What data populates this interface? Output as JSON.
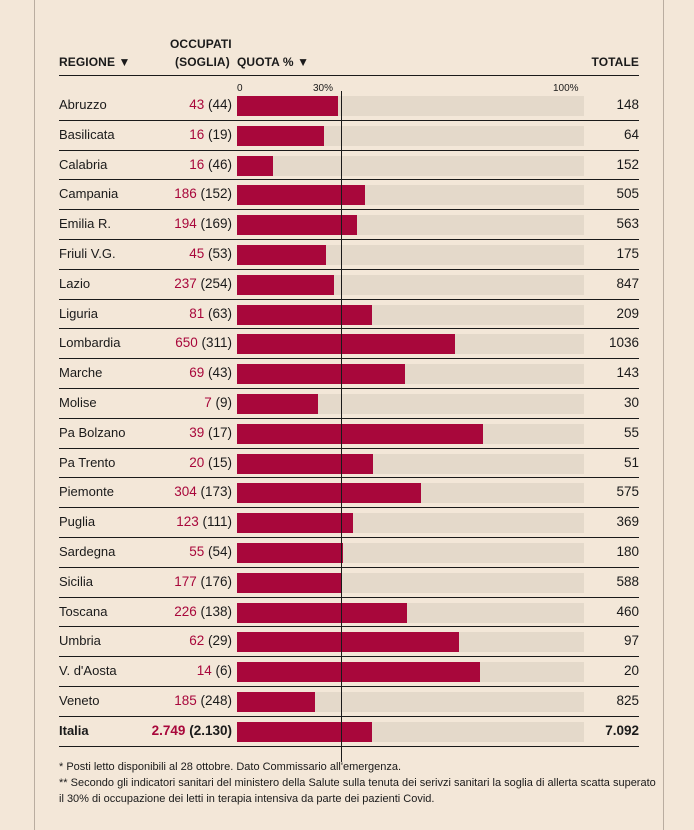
{
  "chart_data": {
    "type": "bar",
    "orientation": "horizontal",
    "title": "",
    "headers": {
      "regione": "REGIONE ▼",
      "occupati_line1": "OCCUPATI",
      "occupati_line2": "(SOGLIA)",
      "quota": "QUOTA % ▼",
      "totale": "TOTALE"
    },
    "xaxis": {
      "ticks": [
        "0",
        "30%",
        "100%"
      ],
      "range": [
        0,
        100
      ],
      "reference_line": 30
    },
    "rows": [
      {
        "regione": "Abruzzo",
        "occupati": "43",
        "soglia": "(44)",
        "totale": "148",
        "quota": 29.1
      },
      {
        "regione": "Basilicata",
        "occupati": "16",
        "soglia": "(19)",
        "totale": "64",
        "quota": 25.0
      },
      {
        "regione": "Calabria",
        "occupati": "16",
        "soglia": "(46)",
        "totale": "152",
        "quota": 10.5
      },
      {
        "regione": "Campania",
        "occupati": "186",
        "soglia": "(152)",
        "totale": "505",
        "quota": 36.8
      },
      {
        "regione": "Emilia R.",
        "occupati": "194",
        "soglia": "(169)",
        "totale": "563",
        "quota": 34.5
      },
      {
        "regione": "Friuli V.G.",
        "occupati": "45",
        "soglia": "(53)",
        "totale": "175",
        "quota": 25.7
      },
      {
        "regione": "Lazio",
        "occupati": "237",
        "soglia": "(254)",
        "totale": "847",
        "quota": 28.0
      },
      {
        "regione": "Liguria",
        "occupati": "81",
        "soglia": "(63)",
        "totale": "209",
        "quota": 38.8
      },
      {
        "regione": "Lombardia",
        "occupati": "650",
        "soglia": "(311)",
        "totale": "1036",
        "quota": 62.7
      },
      {
        "regione": "Marche",
        "occupati": "69",
        "soglia": "(43)",
        "totale": "143",
        "quota": 48.3
      },
      {
        "regione": "Molise",
        "occupati": "7",
        "soglia": "(9)",
        "totale": "30",
        "quota": 23.3
      },
      {
        "regione": "Pa Bolzano",
        "occupati": "39",
        "soglia": "(17)",
        "totale": "55",
        "quota": 70.9
      },
      {
        "regione": "Pa Trento",
        "occupati": "20",
        "soglia": "(15)",
        "totale": "51",
        "quota": 39.2
      },
      {
        "regione": "Piemonte",
        "occupati": "304",
        "soglia": "(173)",
        "totale": "575",
        "quota": 52.9
      },
      {
        "regione": "Puglia",
        "occupati": "123",
        "soglia": "(111)",
        "totale": "369",
        "quota": 33.3
      },
      {
        "regione": "Sardegna",
        "occupati": "55",
        "soglia": "(54)",
        "totale": "180",
        "quota": 30.6
      },
      {
        "regione": "Sicilia",
        "occupati": "177",
        "soglia": "(176)",
        "totale": "588",
        "quota": 30.1
      },
      {
        "regione": "Toscana",
        "occupati": "226",
        "soglia": "(138)",
        "totale": "460",
        "quota": 49.1
      },
      {
        "regione": "Umbria",
        "occupati": "62",
        "soglia": "(29)",
        "totale": "97",
        "quota": 63.9
      },
      {
        "regione": "V. d'Aosta",
        "occupati": "14",
        "soglia": "(6)",
        "totale": "20",
        "quota": 70.0
      },
      {
        "regione": "Veneto",
        "occupati": "185",
        "soglia": "(248)",
        "totale": "825",
        "quota": 22.4
      },
      {
        "regione": "Italia",
        "occupati": "2.749",
        "soglia": "(2.130)",
        "totale": "7.092",
        "quota": 38.8,
        "is_total": true
      }
    ],
    "colors": {
      "bar": "#a8073b",
      "track": "#e4d9ca",
      "background": "#f3e7d8"
    }
  },
  "notes": [
    "* Posti letto disponibili al 28 ottobre. Dato Commissario all'emergenza.",
    "** Secondo gli indicatori sanitari del ministero della Salute sulla tenuta dei serivzi sanitari la soglia di allerta scatta superato il 30% di occupazione dei letti in terapia intensiva da parte dei pazienti Covid."
  ]
}
